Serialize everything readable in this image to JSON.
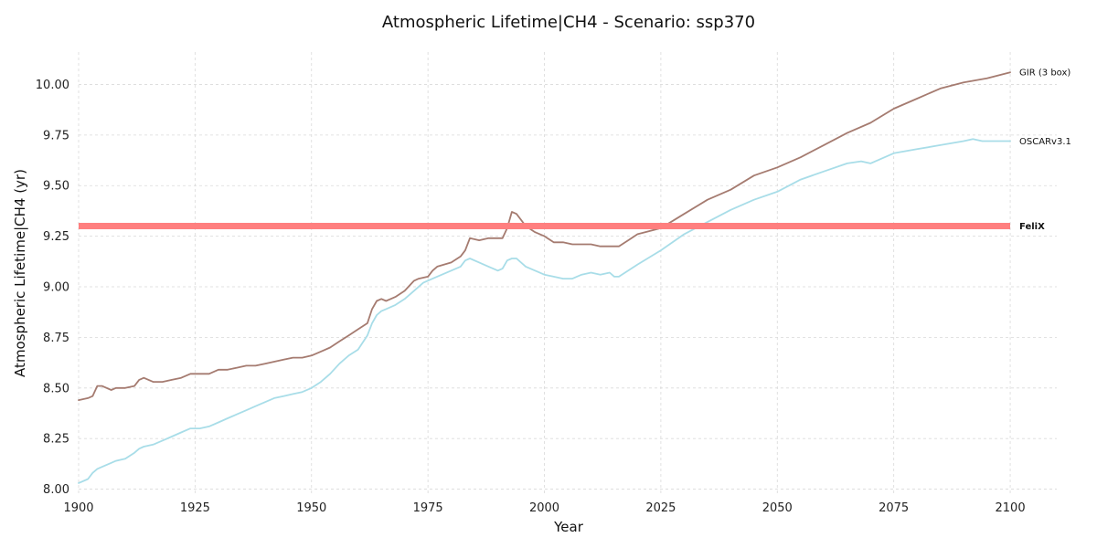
{
  "chart_data": {
    "type": "line",
    "title": "Atmospheric Lifetime|CH4 - Scenario: ssp370",
    "xlabel": "Year",
    "ylabel": "Atmospheric Lifetime|CH4 (yr)",
    "xlim": [
      1900,
      2110
    ],
    "ylim": [
      7.98,
      10.16
    ],
    "x_ticks": [
      1900,
      1925,
      1950,
      1975,
      2000,
      2025,
      2050,
      2075,
      2100
    ],
    "x_tick_labels": [
      "1900",
      "1925",
      "1950",
      "1975",
      "2000",
      "2025",
      "2050",
      "2075",
      "2100"
    ],
    "y_ticks": [
      8.0,
      8.25,
      8.5,
      8.75,
      9.0,
      9.25,
      9.5,
      9.75,
      10.0
    ],
    "y_tick_labels": [
      "8.00",
      "8.25",
      "8.50",
      "8.75",
      "9.00",
      "9.25",
      "9.50",
      "9.75",
      "10.00"
    ],
    "grid": true,
    "legend": "inline labels at right end of lines",
    "series": [
      {
        "name": "GIR (3 box)",
        "color": "#a57b70",
        "bold_label": false,
        "x": [
          1900,
          1902,
          1903,
          1904,
          1905,
          1907,
          1908,
          1910,
          1912,
          1913,
          1914,
          1916,
          1918,
          1920,
          1922,
          1924,
          1926,
          1928,
          1930,
          1932,
          1934,
          1936,
          1938,
          1940,
          1942,
          1944,
          1946,
          1948,
          1950,
          1952,
          1954,
          1956,
          1958,
          1960,
          1962,
          1963,
          1964,
          1965,
          1966,
          1967,
          1968,
          1970,
          1972,
          1973,
          1975,
          1976,
          1977,
          1980,
          1982,
          1983,
          1984,
          1986,
          1988,
          1990,
          1991,
          1992,
          1993,
          1994,
          1996,
          1998,
          2000,
          2002,
          2004,
          2006,
          2008,
          2010,
          2012,
          2014,
          2016,
          2018,
          2020,
          2025,
          2030,
          2035,
          2040,
          2045,
          2050,
          2055,
          2060,
          2065,
          2070,
          2075,
          2080,
          2085,
          2090,
          2095,
          2100
        ],
        "values": [
          8.44,
          8.45,
          8.46,
          8.51,
          8.51,
          8.49,
          8.5,
          8.5,
          8.51,
          8.54,
          8.55,
          8.53,
          8.53,
          8.54,
          8.55,
          8.57,
          8.57,
          8.57,
          8.59,
          8.59,
          8.6,
          8.61,
          8.61,
          8.62,
          8.63,
          8.64,
          8.65,
          8.65,
          8.66,
          8.68,
          8.7,
          8.73,
          8.76,
          8.79,
          8.82,
          8.89,
          8.93,
          8.94,
          8.93,
          8.94,
          8.95,
          8.98,
          9.03,
          9.04,
          9.05,
          9.08,
          9.1,
          9.12,
          9.15,
          9.18,
          9.24,
          9.23,
          9.24,
          9.24,
          9.24,
          9.29,
          9.37,
          9.36,
          9.3,
          9.27,
          9.25,
          9.22,
          9.22,
          9.21,
          9.21,
          9.21,
          9.2,
          9.2,
          9.2,
          9.23,
          9.26,
          9.29,
          9.36,
          9.43,
          9.48,
          9.55,
          9.59,
          9.64,
          9.7,
          9.76,
          9.81,
          9.88,
          9.93,
          9.98,
          10.01,
          10.03,
          10.06
        ]
      },
      {
        "name": "OSCARv3.1",
        "color": "#a8dde8",
        "bold_label": false,
        "x": [
          1900,
          1902,
          1903,
          1904,
          1905,
          1907,
          1908,
          1910,
          1912,
          1913,
          1914,
          1916,
          1918,
          1920,
          1922,
          1924,
          1926,
          1928,
          1930,
          1932,
          1934,
          1936,
          1938,
          1940,
          1942,
          1944,
          1946,
          1948,
          1950,
          1952,
          1954,
          1956,
          1958,
          1960,
          1962,
          1963,
          1964,
          1965,
          1966,
          1968,
          1970,
          1972,
          1974,
          1976,
          1978,
          1980,
          1982,
          1983,
          1984,
          1986,
          1988,
          1990,
          1991,
          1992,
          1993,
          1994,
          1996,
          1998,
          2000,
          2002,
          2004,
          2006,
          2008,
          2010,
          2012,
          2014,
          2015,
          2016,
          2018,
          2020,
          2025,
          2030,
          2035,
          2040,
          2045,
          2050,
          2055,
          2060,
          2065,
          2068,
          2070,
          2075,
          2080,
          2085,
          2090,
          2092,
          2094,
          2096,
          2100
        ],
        "values": [
          8.03,
          8.05,
          8.08,
          8.1,
          8.11,
          8.13,
          8.14,
          8.15,
          8.18,
          8.2,
          8.21,
          8.22,
          8.24,
          8.26,
          8.28,
          8.3,
          8.3,
          8.31,
          8.33,
          8.35,
          8.37,
          8.39,
          8.41,
          8.43,
          8.45,
          8.46,
          8.47,
          8.48,
          8.5,
          8.53,
          8.57,
          8.62,
          8.66,
          8.69,
          8.76,
          8.82,
          8.86,
          8.88,
          8.89,
          8.91,
          8.94,
          8.98,
          9.02,
          9.04,
          9.06,
          9.08,
          9.1,
          9.13,
          9.14,
          9.12,
          9.1,
          9.08,
          9.09,
          9.13,
          9.14,
          9.14,
          9.1,
          9.08,
          9.06,
          9.05,
          9.04,
          9.04,
          9.06,
          9.07,
          9.06,
          9.07,
          9.05,
          9.05,
          9.08,
          9.11,
          9.18,
          9.26,
          9.32,
          9.38,
          9.43,
          9.47,
          9.53,
          9.57,
          9.61,
          9.62,
          9.61,
          9.66,
          9.68,
          9.7,
          9.72,
          9.73,
          9.72,
          9.72,
          9.72
        ]
      },
      {
        "name": "FeliX",
        "color": "#ff7f7f",
        "bold_label": true,
        "x": [
          1900,
          2100
        ],
        "values": [
          9.3,
          9.3
        ]
      }
    ]
  }
}
